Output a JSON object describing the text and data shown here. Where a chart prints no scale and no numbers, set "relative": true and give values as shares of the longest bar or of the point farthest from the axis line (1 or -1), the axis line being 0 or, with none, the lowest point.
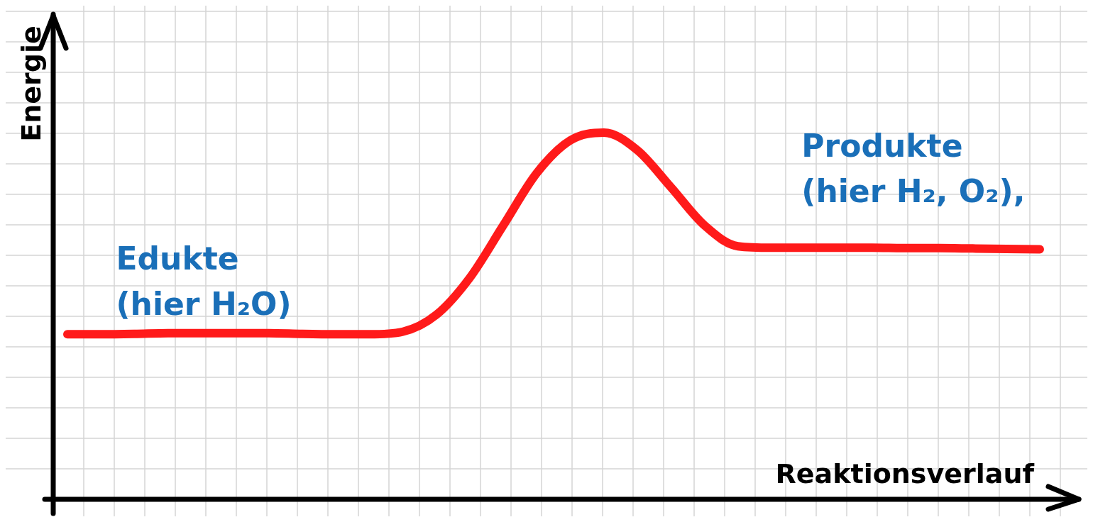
{
  "chart_data": {
    "type": "line",
    "relative": true,
    "xlabel": "Reaktionsverlauf",
    "ylabel": "Energie",
    "grid": true,
    "legend": false,
    "marker": "none",
    "line_style": "solid",
    "categories": [
      null,
      null,
      null,
      null,
      null,
      null,
      null,
      null,
      null,
      null,
      null,
      null,
      null,
      null,
      null,
      null,
      null,
      null,
      null,
      null,
      null,
      null,
      null,
      null,
      null,
      null,
      null,
      null,
      null,
      null
    ],
    "series": [
      {
        "color": "#ff1a1a",
        "values": [
          0.45,
          0.45,
          0.451,
          0.453,
          0.453,
          0.453,
          0.453,
          0.451,
          0.45,
          0.45,
          0.457,
          0.503,
          0.604,
          0.747,
          0.89,
          0.979,
          1,
          0.952,
          0.851,
          0.747,
          0.69,
          0.686,
          0.686,
          0.686,
          0.686,
          0.685,
          0.685,
          0.684,
          0.683,
          0.682
        ]
      }
    ],
    "annotations": [
      "Edukte\n(hier H₂O)",
      "Produkte\n(hier H₂, O₂),"
    ]
  }
}
